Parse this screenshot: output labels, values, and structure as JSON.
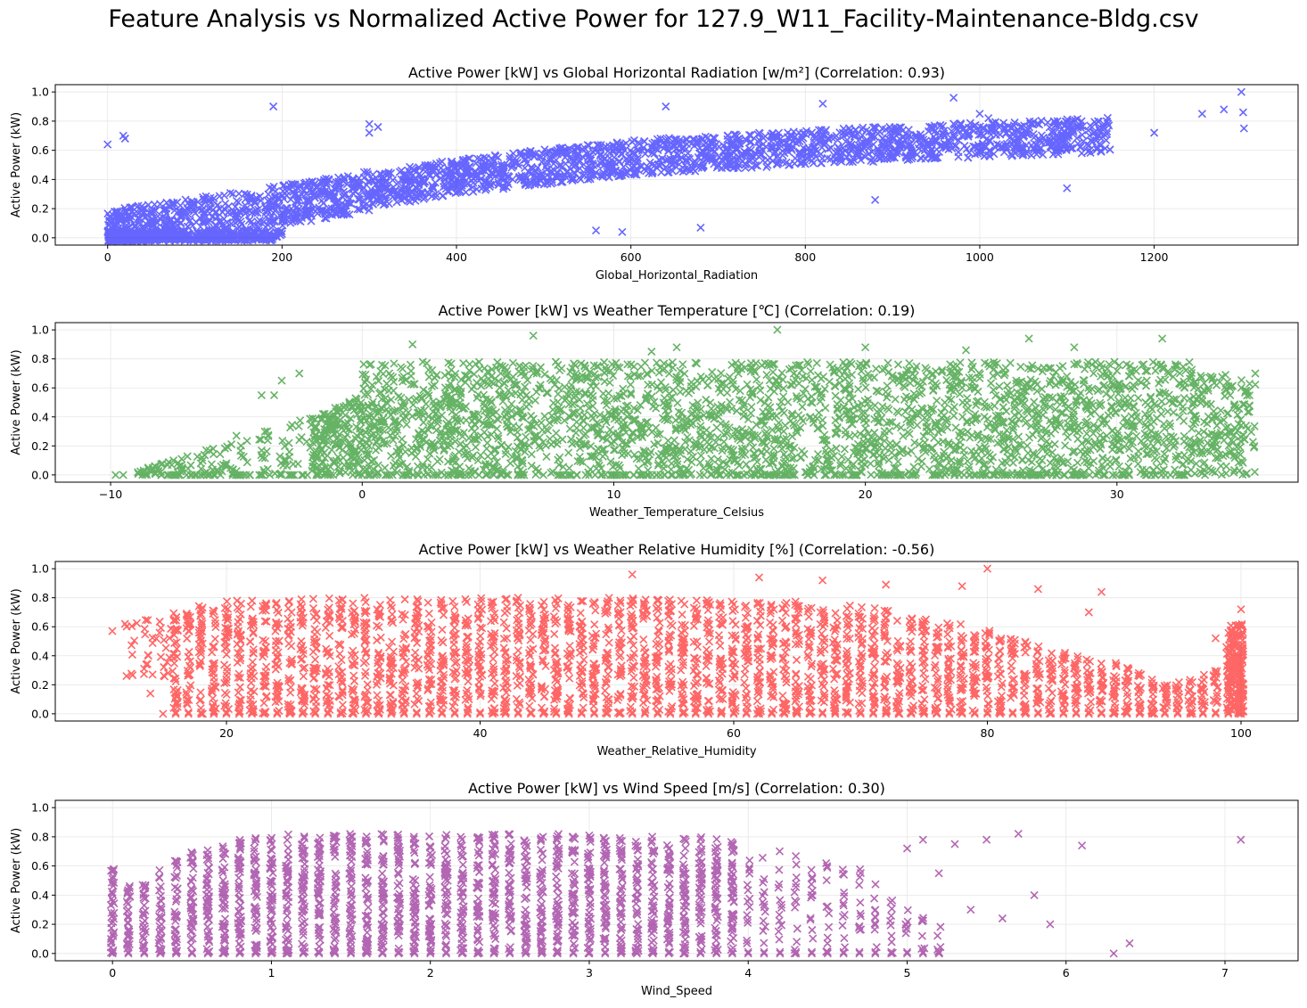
{
  "suptitle": "Feature Analysis vs Normalized Active Power for 127.9_W11_Facility-Maintenance-Bldg.csv",
  "chart_data": [
    {
      "type": "scatter",
      "marker": "x",
      "title": "Active Power [kW] vs Global Horizontal Radiation [w/m²] (Correlation: 0.93)",
      "xlabel": "Global_Horizontal_Radiation",
      "ylabel": "Active Power (kW)",
      "xlim": [
        -60,
        1365
      ],
      "ylim": [
        -0.05,
        1.05
      ],
      "xticks": [
        0,
        200,
        400,
        600,
        800,
        1000,
        1200
      ],
      "xtick_labels": [
        "0",
        "200",
        "400",
        "600",
        "800",
        "1000",
        "1200"
      ],
      "yticks": [
        0.0,
        0.2,
        0.4,
        0.6,
        0.8,
        1.0
      ],
      "ytick_labels": [
        "0.0",
        "0.2",
        "0.4",
        "0.6",
        "0.8",
        "1.0"
      ],
      "grid": true,
      "color": "#0000ff",
      "alpha": 0.6,
      "trend": {
        "x": [
          0,
          200,
          400,
          600,
          800,
          1000,
          1200,
          1300
        ],
        "y": [
          0.05,
          0.22,
          0.42,
          0.55,
          0.62,
          0.67,
          0.72,
          0.75
        ]
      },
      "points": {
        "x": [
          0,
          18,
          20,
          190,
          300,
          310,
          300,
          640,
          820,
          970,
          1000,
          1100,
          1200,
          1255,
          1280,
          1300,
          1302,
          1303,
          880,
          680,
          560,
          590,
          1010,
          1040
        ],
        "y": [
          0.64,
          0.7,
          0.68,
          0.9,
          0.78,
          0.76,
          0.72,
          0.9,
          0.92,
          0.96,
          0.85,
          0.34,
          0.72,
          0.85,
          0.88,
          1.0,
          0.86,
          0.75,
          0.26,
          0.07,
          0.05,
          0.04,
          0.82,
          0.79
        ]
      }
    },
    {
      "type": "scatter",
      "marker": "x",
      "title": "Active Power [kW] vs Weather Temperature [℃] (Correlation: 0.19)",
      "xlabel": "Weather_Temperature_Celsius",
      "ylabel": "Active Power (kW)",
      "xlim": [
        -12.2,
        37.2
      ],
      "ylim": [
        -0.05,
        1.05
      ],
      "xticks": [
        -10,
        0,
        10,
        20,
        30
      ],
      "xtick_labels": [
        "−10",
        "0",
        "10",
        "20",
        "30"
      ],
      "yticks": [
        0.0,
        0.2,
        0.4,
        0.6,
        0.8,
        1.0
      ],
      "ytick_labels": [
        "0.0",
        "0.2",
        "0.4",
        "0.6",
        "0.8",
        "1.0"
      ],
      "grid": true,
      "color": "#008000",
      "alpha": 0.6,
      "points": {
        "x": [
          -9.8,
          -9.5,
          -8.5,
          -8,
          -7.5,
          -6.2,
          -5,
          -4,
          -3.5,
          -3.2,
          -2.5,
          2,
          6.8,
          11.5,
          12.5,
          16.5,
          20,
          24,
          26.5,
          28.3,
          31.8,
          33.5,
          34.5,
          35.5
        ],
        "y": [
          0.0,
          0.0,
          0.05,
          0.02,
          0.1,
          0.17,
          0.27,
          0.55,
          0.55,
          0.65,
          0.7,
          0.9,
          0.96,
          0.85,
          0.88,
          1.0,
          0.88,
          0.86,
          0.94,
          0.88,
          0.94,
          0.0,
          0.55,
          0.7
        ]
      }
    },
    {
      "type": "scatter",
      "marker": "x",
      "title": "Active Power [kW] vs Weather Relative Humidity [%] (Correlation: -0.56)",
      "xlabel": "Weather_Relative_Humidity",
      "ylabel": "Active Power (kW)",
      "xlim": [
        6.5,
        104.5
      ],
      "ylim": [
        -0.05,
        1.05
      ],
      "xticks": [
        20,
        40,
        60,
        80,
        100
      ],
      "xtick_labels": [
        "20",
        "40",
        "60",
        "80",
        "100"
      ],
      "yticks": [
        0.0,
        0.2,
        0.4,
        0.6,
        0.8,
        1.0
      ],
      "ytick_labels": [
        "0.0",
        "0.2",
        "0.4",
        "0.6",
        "0.8",
        "1.0"
      ],
      "grid": true,
      "color": "#ff0000",
      "alpha": 0.6,
      "envelope": {
        "x": [
          11,
          15,
          20,
          30,
          40,
          50,
          60,
          65,
          70,
          75,
          80,
          85,
          90,
          93,
          95,
          98,
          100
        ],
        "y": [
          0.55,
          0.7,
          0.78,
          0.8,
          0.8,
          0.8,
          0.78,
          0.78,
          0.75,
          0.68,
          0.58,
          0.45,
          0.35,
          0.25,
          0.22,
          0.3,
          0.62
        ]
      },
      "points": {
        "x": [
          11,
          12,
          15,
          14,
          52,
          62,
          67,
          72,
          78,
          80,
          84,
          88,
          89,
          98,
          100
        ],
        "y": [
          0.57,
          0.62,
          0.0,
          0.14,
          0.96,
          0.94,
          0.92,
          0.89,
          0.88,
          1.0,
          0.86,
          0.7,
          0.84,
          0.52,
          0.72
        ]
      }
    },
    {
      "type": "scatter",
      "marker": "x",
      "title": "Active Power [kW] vs Wind Speed [m/s] (Correlation: 0.30)",
      "xlabel": "Wind_Speed",
      "ylabel": "Active Power (kW)",
      "xlim": [
        -0.36,
        7.46
      ],
      "ylim": [
        -0.05,
        1.05
      ],
      "xticks": [
        0,
        1,
        2,
        3,
        4,
        5,
        6,
        7
      ],
      "xtick_labels": [
        "0",
        "1",
        "2",
        "3",
        "4",
        "5",
        "6",
        "7"
      ],
      "yticks": [
        0.0,
        0.2,
        0.4,
        0.6,
        0.8,
        1.0
      ],
      "ytick_labels": [
        "0.0",
        "0.2",
        "0.4",
        "0.6",
        "0.8",
        "1.0"
      ],
      "grid": true,
      "color": "#800080",
      "alpha": 0.6,
      "envelope": {
        "x": [
          0,
          0.1,
          0.2,
          0.3,
          0.5,
          0.7,
          1.0,
          1.5,
          2.0,
          2.5,
          3.0,
          3.5,
          3.8,
          4.0,
          4.3,
          4.5,
          4.7,
          5.0,
          5.2
        ],
        "y": [
          0.58,
          0.5,
          0.48,
          0.58,
          0.7,
          0.76,
          0.82,
          0.82,
          0.82,
          0.82,
          0.82,
          0.8,
          0.8,
          0.75,
          0.7,
          0.62,
          0.6,
          0.3,
          0.22
        ]
      },
      "points": {
        "x": [
          5.1,
          5.3,
          5.5,
          5.7,
          5.8,
          5.9,
          6.1,
          6.3,
          6.4,
          7.1,
          5.6,
          5.4,
          5.2,
          5.0
        ],
        "y": [
          0.78,
          0.75,
          0.78,
          0.82,
          0.4,
          0.2,
          0.74,
          0.0,
          0.07,
          0.78,
          0.24,
          0.3,
          0.55,
          0.72
        ]
      }
    }
  ]
}
